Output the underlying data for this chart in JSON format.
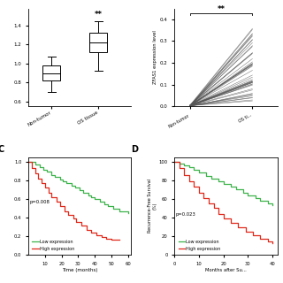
{
  "panel_A": {
    "nontumor": {
      "q1": 0.82,
      "median": 0.9,
      "q3": 0.98,
      "whisker_low": 0.7,
      "whisker_high": 1.07
    },
    "ostumor": {
      "q1": 1.12,
      "median": 1.22,
      "q3": 1.32,
      "whisker_low": 0.92,
      "whisker_high": 1.45
    },
    "labels": [
      "Non-tumor",
      "OS tissue"
    ],
    "significance": "**",
    "ylabel": ""
  },
  "panel_B": {
    "n_lines": 48,
    "ylabel": "ZFAS1 expression level",
    "labels": [
      "Non-tumor",
      "OS ti..."
    ],
    "significance": "**",
    "yticks": [
      0.0,
      0.1,
      0.2,
      0.3,
      0.4
    ],
    "ylim": [
      0.0,
      0.45
    ]
  },
  "panel_C": {
    "low_color": "#3cb34a",
    "high_color": "#e0281a",
    "pvalue": "p=0.008",
    "legend_low": "Low expression",
    "legend_high": "High expression",
    "xlabel": "Time (months)",
    "xticks": [
      10,
      20,
      30,
      40,
      50,
      60
    ],
    "xlim": [
      0,
      62
    ],
    "ylim": [
      0,
      1.05
    ],
    "low_x": [
      0,
      4,
      7,
      9,
      11,
      14,
      16,
      19,
      21,
      23,
      26,
      28,
      31,
      33,
      36,
      38,
      40,
      43,
      46,
      48,
      51,
      55,
      60
    ],
    "low_y": [
      1.0,
      0.97,
      0.94,
      0.91,
      0.89,
      0.86,
      0.84,
      0.81,
      0.79,
      0.77,
      0.74,
      0.72,
      0.69,
      0.67,
      0.64,
      0.62,
      0.6,
      0.57,
      0.54,
      0.52,
      0.49,
      0.47,
      0.45
    ],
    "high_x": [
      0,
      2,
      4,
      6,
      8,
      10,
      12,
      14,
      17,
      19,
      22,
      24,
      27,
      29,
      32,
      35,
      38,
      41,
      44,
      47,
      50,
      55
    ],
    "high_y": [
      1.0,
      0.93,
      0.87,
      0.82,
      0.77,
      0.72,
      0.67,
      0.62,
      0.57,
      0.52,
      0.47,
      0.43,
      0.39,
      0.35,
      0.31,
      0.27,
      0.24,
      0.21,
      0.19,
      0.17,
      0.16,
      0.16
    ]
  },
  "panel_D": {
    "low_color": "#3cb34a",
    "high_color": "#e0281a",
    "pvalue": "p=0.023",
    "legend_low": "Low expression",
    "legend_high": "High expression",
    "ylabel": "Recurrence-Free Survival\n(%)",
    "xlabel": "Months after Su...",
    "xticks": [
      0,
      10,
      20,
      30,
      40
    ],
    "xlim": [
      0,
      42
    ],
    "ylim": [
      0,
      105
    ],
    "low_x": [
      0,
      2,
      4,
      6,
      8,
      10,
      13,
      15,
      18,
      20,
      23,
      25,
      28,
      30,
      33,
      35,
      38,
      40
    ],
    "low_y": [
      100,
      98,
      96,
      94,
      91,
      88,
      85,
      82,
      79,
      76,
      73,
      70,
      67,
      64,
      61,
      58,
      55,
      53
    ],
    "high_x": [
      0,
      2,
      4,
      6,
      8,
      10,
      12,
      14,
      16,
      18,
      20,
      23,
      26,
      29,
      32,
      35,
      38,
      40
    ],
    "high_y": [
      100,
      93,
      86,
      79,
      73,
      67,
      61,
      55,
      50,
      44,
      39,
      34,
      29,
      25,
      21,
      17,
      14,
      12
    ]
  },
  "bg_color": "#ffffff"
}
